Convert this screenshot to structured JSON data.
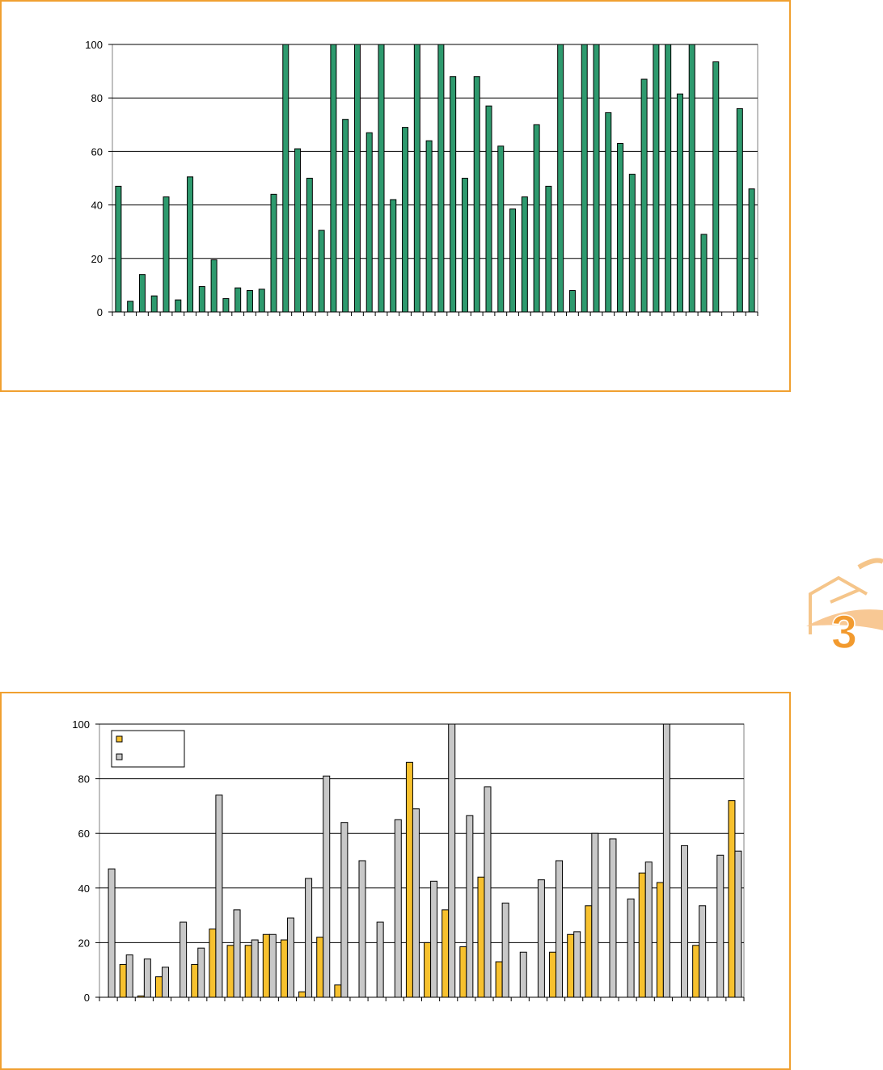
{
  "colors": {
    "frame": "#f0a030",
    "green": "#2e9a6e",
    "yellow": "#f7c12e",
    "gray": "#c8c8c8",
    "badge": "#f5a83c"
  },
  "badge": {
    "icon": "house-icon",
    "label": "3"
  },
  "chart_data": [
    {
      "type": "bar",
      "title": "",
      "xlabel": "",
      "ylabel": "",
      "ylim": [
        0,
        100
      ],
      "yticks": [
        "0",
        "20",
        "40",
        "60",
        "80",
        "100"
      ],
      "grid": true,
      "series": [
        {
          "color": "#2e9a6e",
          "values": [
            47,
            4,
            14,
            6,
            43,
            4.5,
            50.5,
            9.5,
            19.5,
            5,
            9,
            8,
            8.5,
            44,
            100,
            61,
            50,
            30.5,
            100,
            72,
            100,
            67,
            100,
            42,
            69,
            100,
            64,
            100,
            88,
            50,
            88,
            77,
            62,
            38.5,
            43,
            70,
            47,
            100,
            8,
            100,
            100,
            74.5,
            63,
            51.5,
            87,
            100,
            100,
            81.5,
            100,
            29,
            93.5,
            0,
            76,
            46
          ]
        }
      ]
    },
    {
      "type": "bar",
      "title": "",
      "xlabel": "",
      "ylabel": "",
      "ylim": [
        0,
        100
      ],
      "yticks": [
        "0",
        "20",
        "40",
        "60",
        "80",
        "100"
      ],
      "grid": true,
      "legend": {
        "position": "top-left",
        "entries": [
          "",
          ""
        ]
      },
      "series": [
        {
          "color": "#f7c12e",
          "values": [
            0,
            12,
            0.5,
            7.5,
            0,
            12,
            25,
            19,
            19,
            23,
            21,
            2,
            22,
            4.5,
            0,
            0,
            0,
            86,
            20,
            32,
            18.5,
            44,
            13,
            0,
            0,
            16.5,
            23,
            33.5,
            0,
            0,
            45.5,
            42,
            0,
            19,
            0,
            72
          ]
        },
        {
          "color": "#c8c8c8",
          "values": [
            47,
            15.5,
            14,
            11,
            27.5,
            18,
            74,
            32,
            21,
            23,
            29,
            43.5,
            81,
            64,
            50,
            27.5,
            65,
            69,
            42.5,
            100,
            66.5,
            77,
            34.5,
            16.5,
            43,
            50,
            24,
            60,
            58,
            36,
            49.5,
            100,
            55.5,
            33.5,
            52,
            53.5
          ]
        }
      ]
    }
  ]
}
